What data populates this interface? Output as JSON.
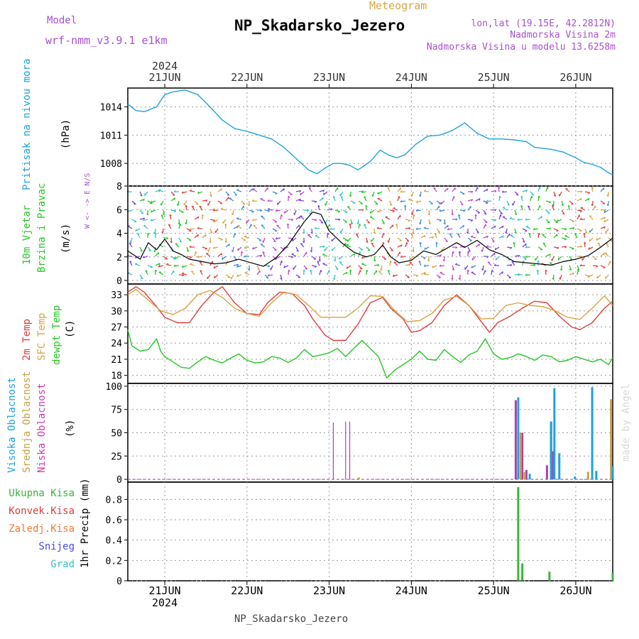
{
  "header": {
    "model_label": "Model",
    "model_name": "wrf-nmm_v3.9.1  e1km",
    "meteogram_label": "Meteogram",
    "station_title": "NP_Skadarsko_Jezero",
    "lonlat": "lon,lat (19.15E, 42.2812N)",
    "altitude": "Nadmorska Visina 2m",
    "model_altitude": "Nadmorska Visina u modelu 13.6258m",
    "year": "2024",
    "footer_station": "NP_Skadarsko_Jezero",
    "watermark": "made by Angel"
  },
  "colors": {
    "pressure": "#1ca3dc",
    "t2m": "#e03c3c",
    "tsfc": "#d9a441",
    "dewpt": "#22c922",
    "cloud_high": "#1ca3dc",
    "cloud_mid": "#c8a040",
    "cloud_low": "#b03fb0",
    "precip_total": "#3ab43a",
    "precip_conv": "#e03c3c",
    "precip_frozen": "#f07a30",
    "snow": "#4a4ae0",
    "hail": "#33c4c4",
    "label_purple": "#a84fd0",
    "grid": "#999999"
  },
  "chart_data": [
    {
      "type": "line",
      "panel": "pressure",
      "ylabel": [
        "Pritisak na nivou mora",
        "(hPa)"
      ],
      "yticks": [
        1008,
        1011,
        1014
      ],
      "ylim": [
        1005.6,
        1016.0
      ],
      "x_unit": "days since 21JUN 00UTC",
      "xlim": [
        -0.45,
        5.45
      ],
      "xticks": [
        "21JUN",
        "22JUN",
        "23JUN",
        "24JUN",
        "25JUN",
        "26JUN"
      ],
      "series": [
        {
          "name": "Pritisak",
          "x": [
            -0.45,
            -0.35,
            -0.25,
            -0.1,
            0.0,
            0.1,
            0.25,
            0.4,
            0.55,
            0.7,
            0.85,
            1.0,
            1.15,
            1.3,
            1.45,
            1.6,
            1.75,
            1.85,
            1.95,
            2.05,
            2.15,
            2.25,
            2.35,
            2.5,
            2.62,
            2.72,
            2.82,
            2.92,
            3.05,
            3.2,
            3.35,
            3.5,
            3.65,
            3.8,
            3.95,
            4.1,
            4.25,
            4.4,
            4.5,
            4.6,
            4.7,
            4.85,
            5.0,
            5.1,
            5.2,
            5.3,
            5.4,
            5.45
          ],
          "values": [
            1014.3,
            1013.6,
            1013.5,
            1014.0,
            1015.3,
            1015.6,
            1015.8,
            1015.3,
            1014.0,
            1012.6,
            1011.7,
            1011.4,
            1011.0,
            1010.6,
            1009.7,
            1008.5,
            1007.3,
            1006.9,
            1007.5,
            1008.0,
            1008.0,
            1007.8,
            1007.3,
            1008.2,
            1009.4,
            1008.9,
            1008.6,
            1008.9,
            1010.0,
            1010.9,
            1011.0,
            1011.5,
            1012.3,
            1011.2,
            1010.6,
            1010.6,
            1010.5,
            1010.3,
            1009.7,
            1009.6,
            1009.5,
            1009.2,
            1008.6,
            1008.1,
            1007.9,
            1007.6,
            1007.0,
            1006.8
          ]
        }
      ]
    },
    {
      "type": "line",
      "panel": "wind",
      "ylabel": [
        "10m Vjetar",
        "Brzina i Pravac",
        "(m/s)"
      ],
      "compass": "W <- -> E  N/S",
      "yticks": [
        0,
        2,
        4,
        6,
        8
      ],
      "ylim": [
        -0.3,
        8.0
      ],
      "series": [
        {
          "name": "Brzina",
          "x": [
            -0.45,
            -0.3,
            -0.2,
            -0.1,
            0.0,
            0.1,
            0.2,
            0.3,
            0.45,
            0.6,
            0.75,
            0.9,
            1.05,
            1.2,
            1.35,
            1.5,
            1.6,
            1.7,
            1.8,
            1.9,
            2.0,
            2.15,
            2.3,
            2.45,
            2.55,
            2.65,
            2.75,
            2.85,
            3.0,
            3.15,
            3.3,
            3.45,
            3.55,
            3.65,
            3.8,
            3.95,
            4.1,
            4.25,
            4.4,
            4.55,
            4.7,
            4.85,
            5.0,
            5.15,
            5.3,
            5.45
          ],
          "values": [
            2.5,
            1.8,
            3.2,
            2.6,
            3.5,
            2.5,
            2.2,
            1.8,
            1.6,
            1.4,
            1.5,
            1.8,
            1.5,
            1.2,
            1.9,
            3.0,
            4.0,
            5.0,
            5.8,
            5.6,
            4.2,
            3.2,
            2.4,
            2.0,
            2.2,
            3.0,
            2.0,
            1.5,
            1.7,
            2.5,
            2.2,
            2.8,
            3.2,
            2.8,
            3.4,
            2.6,
            2.2,
            1.6,
            1.5,
            1.4,
            1.3,
            1.6,
            1.8,
            2.1,
            2.8,
            3.6
          ]
        }
      ]
    },
    {
      "type": "line",
      "panel": "temperature",
      "ylabel": [
        "2m Temp",
        "SFC Temp",
        "dewpt Temp",
        "(C)"
      ],
      "yticks": [
        18,
        21,
        24,
        27,
        30,
        33
      ],
      "ylim": [
        16.5,
        35.0
      ],
      "series": [
        {
          "name": "2m Temp",
          "x": [
            -0.45,
            -0.35,
            -0.25,
            -0.1,
            0.0,
            0.15,
            0.3,
            0.45,
            0.6,
            0.7,
            0.85,
            1.0,
            1.15,
            1.25,
            1.4,
            1.55,
            1.7,
            1.8,
            1.95,
            2.05,
            2.2,
            2.35,
            2.5,
            2.65,
            2.75,
            2.9,
            3.0,
            3.1,
            3.25,
            3.4,
            3.55,
            3.7,
            3.8,
            3.95,
            4.05,
            4.2,
            4.35,
            4.5,
            4.65,
            4.8,
            4.95,
            5.05,
            5.2,
            5.35,
            5.45
          ],
          "values": [
            33.5,
            34.5,
            33.5,
            30.8,
            28.8,
            27.8,
            27.8,
            31.0,
            33.5,
            34.5,
            31.5,
            29.5,
            29.3,
            31.5,
            33.5,
            33.2,
            31.0,
            28.5,
            25.5,
            24.5,
            24.5,
            27.5,
            31.5,
            32.5,
            30.5,
            28.5,
            26.0,
            26.3,
            27.8,
            31.0,
            33.0,
            31.0,
            29.0,
            26.0,
            27.8,
            29.0,
            30.5,
            31.8,
            31.5,
            29.0,
            27.0,
            26.5,
            27.8,
            30.5,
            31.8
          ]
        },
        {
          "name": "SFC Temp",
          "x": [
            -0.45,
            -0.35,
            -0.2,
            -0.05,
            0.1,
            0.25,
            0.4,
            0.55,
            0.7,
            0.85,
            1.0,
            1.15,
            1.3,
            1.45,
            1.6,
            1.75,
            1.9,
            2.05,
            2.2,
            2.35,
            2.5,
            2.65,
            2.8,
            2.95,
            3.1,
            3.25,
            3.4,
            3.55,
            3.7,
            3.85,
            4.0,
            4.15,
            4.3,
            4.45,
            4.6,
            4.75,
            4.9,
            5.05,
            5.2,
            5.35,
            5.45
          ],
          "values": [
            33.0,
            34.0,
            32.0,
            30.0,
            29.3,
            30.5,
            33.0,
            33.8,
            32.5,
            30.5,
            29.5,
            29.0,
            31.5,
            33.5,
            33.0,
            31.0,
            28.8,
            28.8,
            28.8,
            30.5,
            32.8,
            32.7,
            30.0,
            28.0,
            28.2,
            29.5,
            32.0,
            32.7,
            31.0,
            28.5,
            28.6,
            31.0,
            31.5,
            31.0,
            30.8,
            30.0,
            28.8,
            28.4,
            30.5,
            32.8,
            31.0
          ]
        },
        {
          "name": "dewpt Temp",
          "x": [
            -0.45,
            -0.4,
            -0.3,
            -0.2,
            -0.1,
            -0.05,
            0.0,
            0.1,
            0.2,
            0.3,
            0.4,
            0.5,
            0.6,
            0.7,
            0.8,
            0.9,
            1.0,
            1.1,
            1.2,
            1.3,
            1.4,
            1.5,
            1.6,
            1.7,
            1.8,
            1.9,
            2.0,
            2.1,
            2.2,
            2.3,
            2.4,
            2.5,
            2.6,
            2.7,
            2.8,
            2.9,
            3.0,
            3.1,
            3.2,
            3.3,
            3.4,
            3.5,
            3.6,
            3.7,
            3.8,
            3.9,
            4.0,
            4.1,
            4.2,
            4.3,
            4.4,
            4.5,
            4.6,
            4.7,
            4.8,
            4.9,
            5.0,
            5.1,
            5.2,
            5.3,
            5.4,
            5.45
          ],
          "values": [
            26.5,
            23.5,
            22.5,
            22.8,
            24.8,
            22.5,
            21.5,
            20.5,
            19.5,
            19.3,
            20.5,
            21.5,
            20.8,
            20.3,
            21.2,
            22.0,
            20.8,
            20.3,
            20.5,
            21.5,
            21.2,
            20.4,
            21.2,
            22.8,
            21.5,
            21.8,
            22.2,
            23.0,
            21.5,
            23.0,
            24.5,
            23.0,
            21.5,
            17.5,
            19.0,
            20.0,
            21.0,
            22.5,
            21.0,
            20.8,
            22.8,
            21.5,
            20.4,
            21.8,
            22.5,
            24.8,
            22.0,
            21.0,
            21.3,
            22.0,
            21.5,
            20.8,
            21.8,
            21.5,
            20.5,
            20.8,
            21.5,
            21.0,
            20.5,
            21.0,
            20.0,
            21.3
          ]
        }
      ]
    },
    {
      "type": "bar",
      "panel": "clouds",
      "ylabel": [
        "Visoka Oblacnost",
        "Srednja Oblacnost",
        "Niska Oblacnost",
        "(%)"
      ],
      "yticks": [
        0,
        25,
        50,
        75,
        100
      ],
      "ylim": [
        -3,
        103
      ],
      "series": [
        {
          "name": "Niska Oblacnost",
          "x": [
            2.05,
            2.2,
            2.25,
            4.27,
            4.35,
            4.4,
            4.65,
            4.7,
            4.72
          ],
          "values": [
            61,
            62,
            62,
            85,
            50,
            10,
            15,
            62,
            30
          ]
        },
        {
          "name": "Srednja Oblacnost",
          "x": [
            2.36,
            4.33,
            4.38,
            5.15,
            5.43
          ],
          "values": [
            2,
            50,
            8,
            8,
            86
          ]
        },
        {
          "name": "Visoka Oblacnost",
          "x": [
            4.3,
            4.44,
            4.7,
            4.74,
            4.8,
            4.99,
            5.2,
            5.25,
            5.45
          ],
          "values": [
            88,
            6,
            62,
            98,
            28,
            3,
            99,
            9,
            14
          ]
        }
      ]
    },
    {
      "type": "bar",
      "panel": "precip",
      "ylabel": [
        "1hr Precip (mm)"
      ],
      "legend": [
        "Ukupna Kisa",
        "Konvek.Kisa",
        "Zaledj.Kisa",
        "Snijeg",
        "Grad"
      ],
      "yticks": [
        0,
        0.2,
        0.4,
        0.6,
        0.8
      ],
      "ylim": [
        0,
        0.97
      ],
      "series": [
        {
          "name": "Ukupna Kisa",
          "x": [
            4.3,
            4.35,
            4.68,
            5.45
          ],
          "values": [
            0.92,
            0.17,
            0.09,
            0.08
          ]
        }
      ]
    }
  ]
}
